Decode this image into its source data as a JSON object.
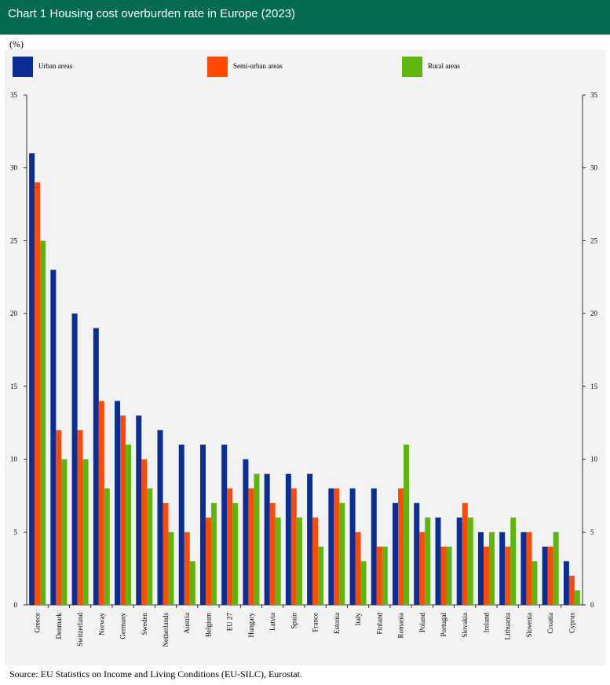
{
  "header": {
    "title": "Chart 1 Housing cost overburden rate in Europe (2023)"
  },
  "unit_label": "(%)",
  "source": "Source: EU Statistics on Income and Living Conditions (EU-SILC), Eurostat.",
  "colors": {
    "urban": "#0a2d96",
    "semi_urban": "#ff4a05",
    "rural": "#5db60b",
    "header": "#056a52"
  },
  "chart_data": {
    "type": "bar",
    "title": "Chart 1 Housing cost overburden rate in Europe (2023)",
    "ylabel": "(%)",
    "xlabel": "",
    "ylim": [
      0,
      35
    ],
    "yticks": [
      0,
      5,
      10,
      15,
      20,
      25,
      30,
      35
    ],
    "legend_position": "top",
    "grid": false,
    "categories": [
      "Greece",
      "Denmark",
      "Switzerland",
      "Norway",
      "Germany",
      "Sweden",
      "Netherlands",
      "Austria",
      "Belgium",
      "EU 27",
      "Hungary",
      "Latvia",
      "Spain",
      "France",
      "Estonia",
      "Italy",
      "Finland",
      "Romania",
      "Poland",
      "Portugal",
      "Slovakia",
      "Ireland",
      "Lithuania",
      "Slovenia",
      "Croatia",
      "Cyprus"
    ],
    "series": [
      {
        "name": "Urban areas",
        "values": [
          31,
          23,
          20,
          19,
          14,
          13,
          12,
          11,
          11,
          11,
          10,
          9,
          9,
          9,
          8,
          8,
          8,
          7,
          7,
          6,
          6,
          5,
          5,
          5,
          4,
          3
        ]
      },
      {
        "name": "Semi-urban areas",
        "values": [
          29,
          12,
          12,
          14,
          13,
          10,
          7,
          5,
          6,
          8,
          8,
          7,
          8,
          6,
          8,
          5,
          4,
          8,
          5,
          4,
          7,
          4,
          4,
          5,
          4,
          2
        ]
      },
      {
        "name": "Rural areas",
        "values": [
          25,
          10,
          10,
          8,
          11,
          8,
          5,
          3,
          7,
          7,
          9,
          6,
          6,
          4,
          7,
          3,
          4,
          11,
          6,
          4,
          6,
          5,
          6,
          3,
          5,
          1
        ]
      }
    ]
  }
}
